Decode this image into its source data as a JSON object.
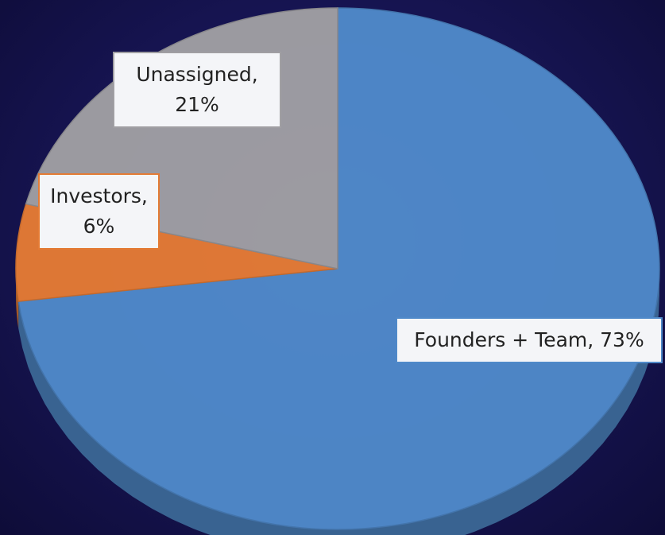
{
  "chart_data": {
    "type": "pie",
    "values": [
      73,
      6,
      21
    ],
    "value_labels": [
      "Founders + Team, 73%",
      "Investors, 6%",
      "Unassigned, 21%"
    ],
    "colors": [
      "#4f89c9",
      "#e47b35",
      "#a09fa3"
    ]
  }
}
